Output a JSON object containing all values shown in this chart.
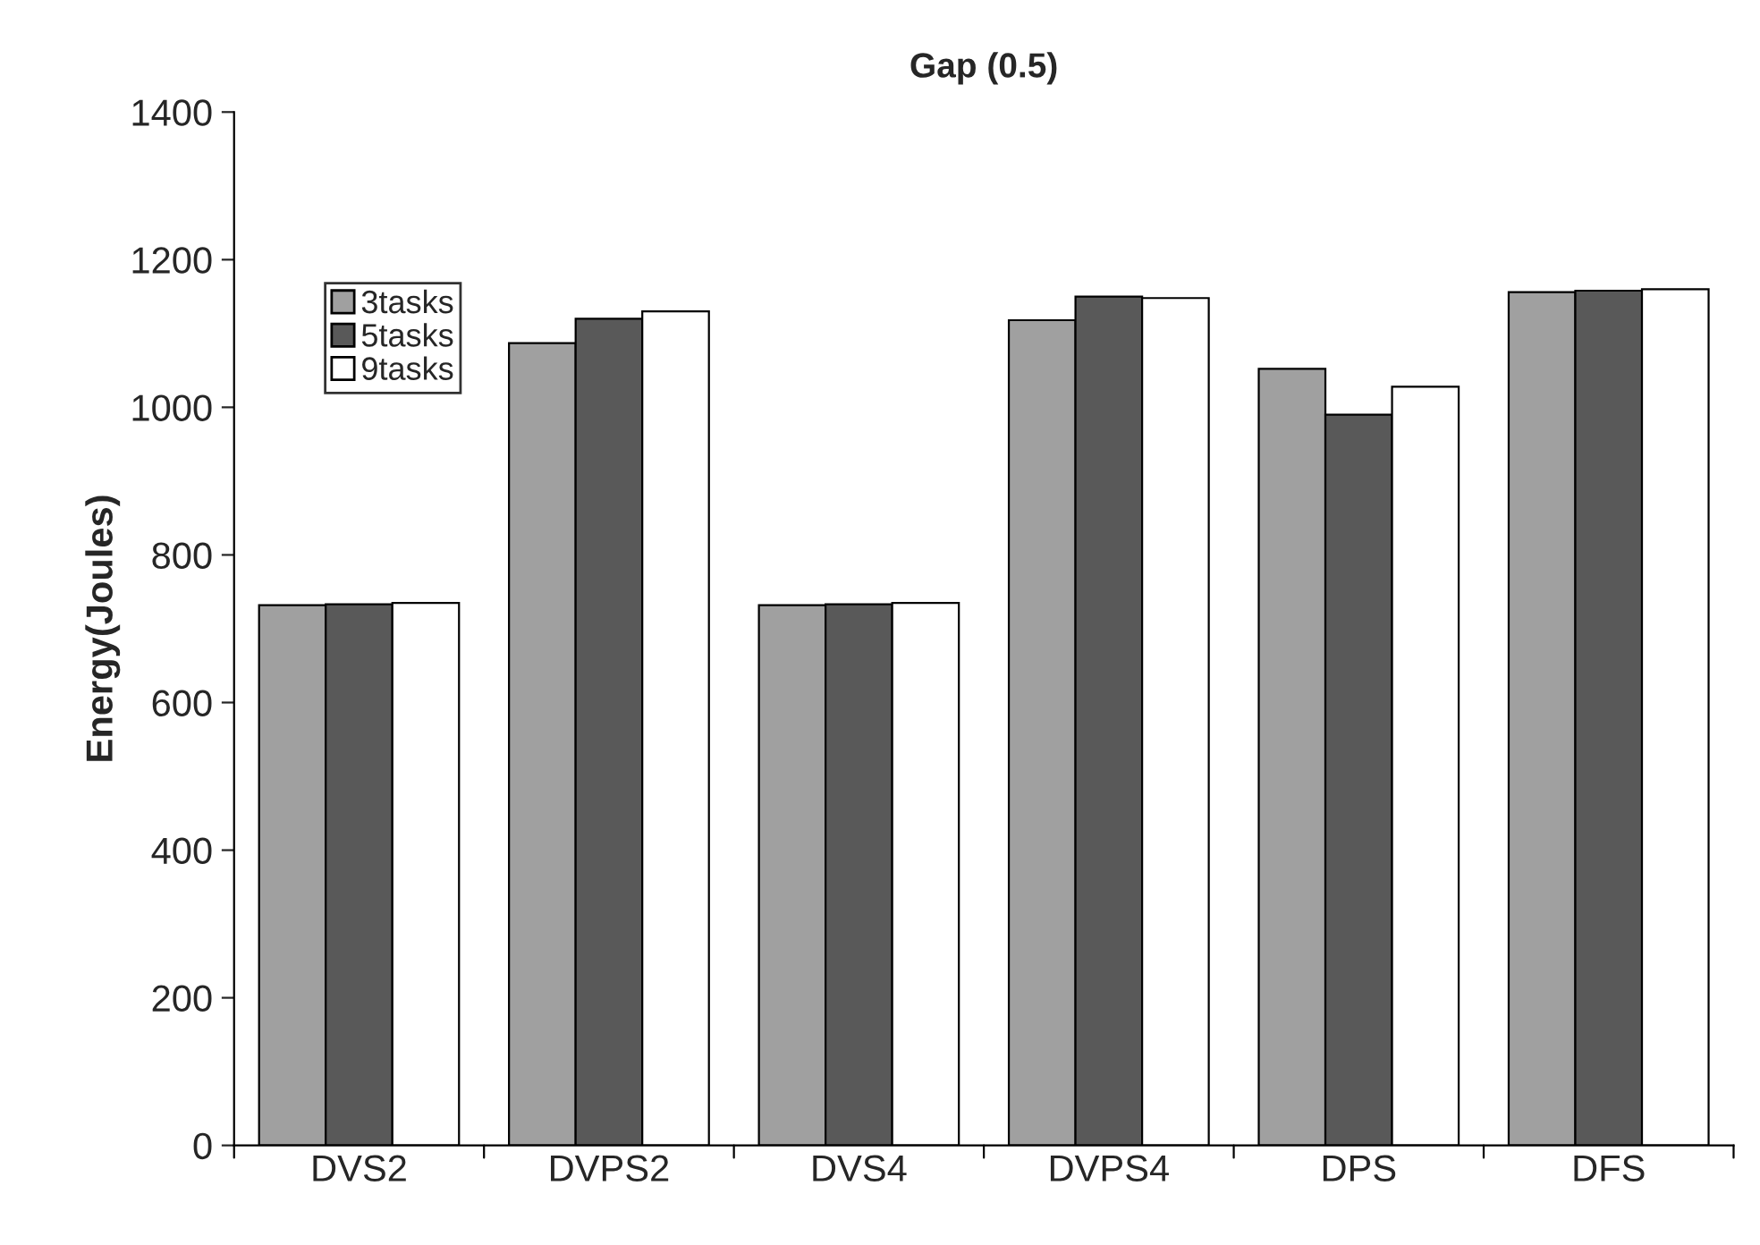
{
  "chart_data": {
    "type": "bar",
    "title": "Gap (0.5)",
    "ylabel": "Energy(Joules)",
    "categories": [
      "DVS2",
      "DVPS2",
      "DVS4",
      "DVPS4",
      "DPS",
      "DFS"
    ],
    "series": [
      {
        "name": "3tasks",
        "color": "#a0a0a0",
        "values": [
          732,
          1087,
          732,
          1118,
          1052,
          1156
        ]
      },
      {
        "name": "5tasks",
        "color": "#595959",
        "values": [
          733,
          1120,
          733,
          1150,
          990,
          1158
        ]
      },
      {
        "name": "9tasks",
        "color": "#ffffff",
        "values": [
          735,
          1130,
          735,
          1148,
          1028,
          1160
        ]
      }
    ],
    "ylim": [
      0,
      1400
    ],
    "yticks": [
      0,
      200,
      400,
      600,
      800,
      1000,
      1200,
      1400
    ],
    "grid": false,
    "legend": "top left"
  }
}
